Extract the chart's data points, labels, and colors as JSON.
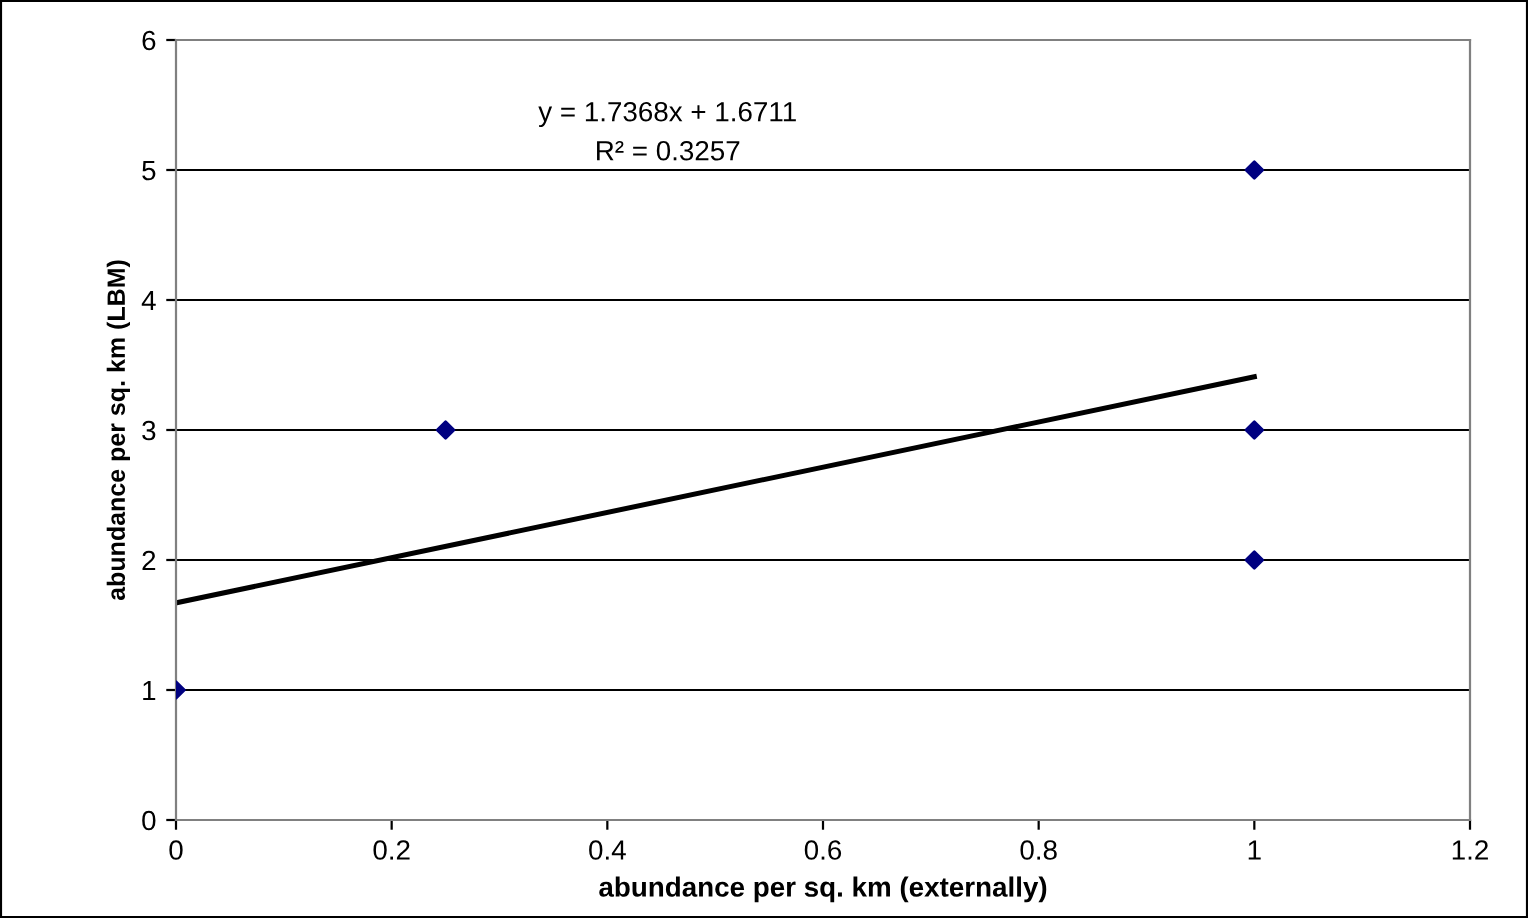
{
  "chart_data": {
    "type": "scatter",
    "xlabel": "abundance per sq. km (externally)",
    "ylabel": "abundance per sq. km (LBM)",
    "annotations": [
      "y = 1.7368x + 1.6711",
      "R² = 0.3257"
    ],
    "series": [
      {
        "color": "#000080",
        "x": [
          0,
          0.25,
          1,
          1,
          1
        ],
        "values": [
          1,
          3,
          5,
          3,
          2
        ],
        "marker": "diamond"
      },
      {
        "type": "line",
        "color": "#000000",
        "x": [
          0,
          1
        ],
        "values": [
          1.67,
          3.41
        ],
        "marker": "none"
      }
    ],
    "xlim": [
      0,
      1.2
    ],
    "xticks": [
      0,
      0.2,
      0.4,
      0.6,
      0.8,
      1,
      1.2
    ],
    "ylim": [
      0,
      6
    ],
    "yticks": [
      0,
      1,
      2,
      3,
      4,
      5,
      6
    ],
    "grid": "y",
    "legend": false
  }
}
